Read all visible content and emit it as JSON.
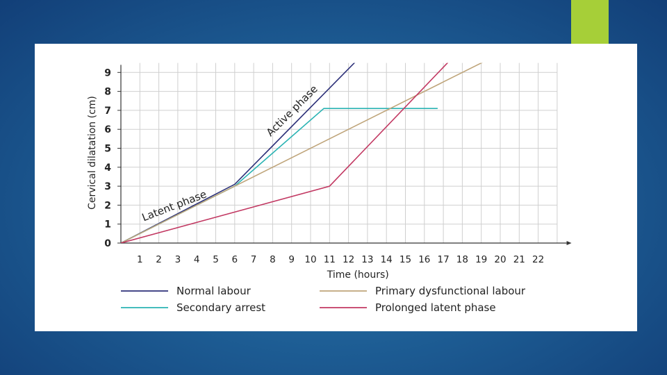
{
  "chart_data": {
    "type": "line",
    "title": "",
    "xlabel": "Time (hours)",
    "ylabel": "Cervical dilatation (cm)",
    "xlim": [
      0,
      23.5
    ],
    "ylim": [
      0,
      9.5
    ],
    "x_ticks": [
      "1",
      "2",
      "3",
      "4",
      "5",
      "6",
      "7",
      "8",
      "9",
      "10",
      "11",
      "12",
      "13",
      "14",
      "15",
      "16",
      "17",
      "18",
      "19",
      "20",
      "21",
      "22"
    ],
    "y_ticks": [
      "0",
      "1",
      "2",
      "3",
      "4",
      "5",
      "6",
      "7",
      "8",
      "9"
    ],
    "grid": true,
    "legend_position": "bottom",
    "annotations": [
      {
        "text": "Latent phase"
      },
      {
        "text": "Active phase"
      }
    ],
    "series": [
      {
        "name": "Normal labour",
        "color": "#2c2f78",
        "points": [
          [
            0,
            0
          ],
          [
            6,
            3.1
          ],
          [
            12.6,
            9.8
          ]
        ]
      },
      {
        "name": "Secondary arrest",
        "color": "#29b3b3",
        "points": [
          [
            0,
            0
          ],
          [
            6,
            3
          ],
          [
            10.7,
            7.1
          ],
          [
            16.7,
            7.1
          ]
        ]
      },
      {
        "name": "Primary dysfunctional labour",
        "color": "#bfa57a",
        "points": [
          [
            0,
            0
          ],
          [
            19.6,
            9.8
          ]
        ]
      },
      {
        "name": "Prolonged latent phase",
        "color": "#c23862",
        "points": [
          [
            0,
            0
          ],
          [
            11,
            3
          ],
          [
            17.5,
            9.8
          ]
        ]
      }
    ]
  },
  "colors": {
    "background": "#1e5f96",
    "accent_tab": "#a6cf38",
    "panel": "#ffffff",
    "grid": "#cfcfcf",
    "axis": "#333333"
  }
}
